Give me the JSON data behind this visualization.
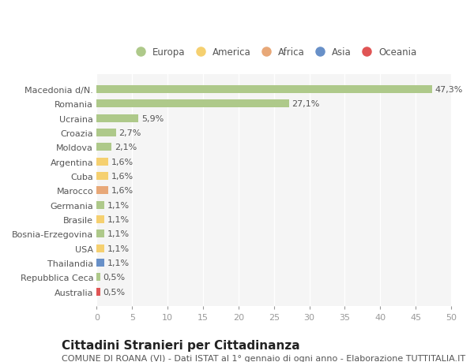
{
  "categories": [
    "Macedonia d/N.",
    "Romania",
    "Ucraina",
    "Croazia",
    "Moldova",
    "Argentina",
    "Cuba",
    "Marocco",
    "Germania",
    "Brasile",
    "Bosnia-Erzegovina",
    "USA",
    "Thailandia",
    "Repubblica Ceca",
    "Australia"
  ],
  "values": [
    47.3,
    27.1,
    5.9,
    2.7,
    2.1,
    1.6,
    1.6,
    1.6,
    1.1,
    1.1,
    1.1,
    1.1,
    1.1,
    0.5,
    0.5
  ],
  "labels": [
    "47,3%",
    "27,1%",
    "5,9%",
    "2,7%",
    "2,1%",
    "1,6%",
    "1,6%",
    "1,6%",
    "1,1%",
    "1,1%",
    "1,1%",
    "1,1%",
    "1,1%",
    "0,5%",
    "0,5%"
  ],
  "colors": [
    "#aec98a",
    "#aec98a",
    "#aec98a",
    "#aec98a",
    "#aec98a",
    "#f5d070",
    "#f5d070",
    "#e8a878",
    "#aec98a",
    "#f5d070",
    "#aec98a",
    "#f5d070",
    "#6890c8",
    "#aec98a",
    "#e05555"
  ],
  "continent_labels": [
    "Europa",
    "America",
    "Africa",
    "Asia",
    "Oceania"
  ],
  "continent_colors": [
    "#aec98a",
    "#f5d070",
    "#e8a878",
    "#6890c8",
    "#e05555"
  ],
  "title": "Cittadini Stranieri per Cittadinanza",
  "subtitle": "COMUNE DI ROANA (VI) - Dati ISTAT al 1° gennaio di ogni anno - Elaborazione TUTTITALIA.IT",
  "xlim": [
    0,
    50
  ],
  "xticks": [
    0,
    5,
    10,
    15,
    20,
    25,
    30,
    35,
    40,
    45,
    50
  ],
  "bg_color": "#ffffff",
  "plot_bg_color": "#f5f5f5",
  "grid_color": "#ffffff",
  "bar_height": 0.55,
  "label_fontsize": 8,
  "tick_fontsize": 8,
  "ytick_fontsize": 8,
  "title_fontsize": 11,
  "subtitle_fontsize": 8
}
